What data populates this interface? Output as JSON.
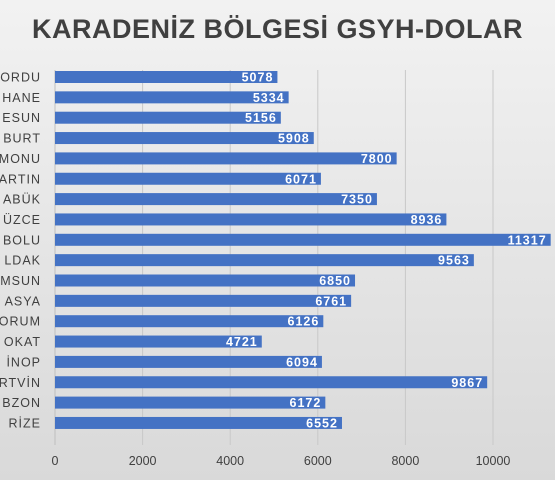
{
  "chart_data": {
    "type": "bar",
    "orientation": "horizontal",
    "title": "KARADENİZ BÖLGESİ GSYH-DOLAR",
    "categories": [
      "ORDU",
      "HANE",
      "ESUN",
      "BURT",
      "MONU",
      "ARTIN",
      "ABÜK",
      "ÜZCE",
      "BOLU",
      "LDAK",
      "MSUN",
      "ASYA",
      "ORUM",
      "OKAT",
      "İNOP",
      "RTVİN",
      "BZON",
      "RİZE"
    ],
    "values": [
      5078,
      5334,
      5156,
      5908,
      7800,
      6071,
      7350,
      8936,
      11317,
      9563,
      6850,
      6761,
      6126,
      4721,
      6094,
      9867,
      6172,
      6552
    ],
    "xticks": [
      "0",
      "2000",
      "4000",
      "6000",
      "8000",
      "10000"
    ],
    "xlim": [
      0,
      11317
    ],
    "grid": true,
    "bar_color": "#4472c4"
  }
}
